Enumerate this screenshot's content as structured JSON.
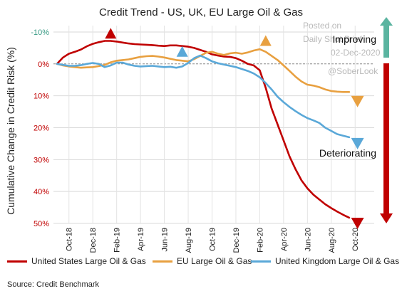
{
  "chart_data": {
    "type": "line",
    "title": "Credit Trend - US, UK, EU Large Oil & Gas",
    "ylabel": "Cumulative Change in Credit Risk (%)",
    "xlabel": "",
    "y_axis_inverted": true,
    "ylim": [
      -12,
      50
    ],
    "y_ticks": [
      -10,
      0,
      10,
      20,
      30,
      40,
      50
    ],
    "y_tick_labels": [
      "-10%",
      "0%",
      "10%",
      "20%",
      "30%",
      "40%",
      "50%"
    ],
    "x_tick_labels": [
      "Oct-18",
      "Dec-18",
      "Feb-19",
      "Apr-19",
      "Jun-19",
      "Aug-19",
      "Oct-19",
      "Dec-19",
      "Feb-20",
      "Apr-20",
      "Jun-20",
      "Aug-20",
      "Oct-20"
    ],
    "x_month_index": [
      0,
      2,
      4,
      6,
      8,
      10,
      12,
      14,
      16,
      18,
      20,
      22,
      24
    ],
    "grid": true,
    "legend_position": "bottom",
    "series": [
      {
        "name": "United States Large Oil & Gas",
        "color": "#c00000",
        "x": [
          -1,
          -0.5,
          0,
          0.5,
          1,
          1.5,
          2,
          2.5,
          3,
          3.5,
          4,
          4.5,
          5,
          5.5,
          6,
          6.5,
          7,
          7.5,
          8,
          8.5,
          9,
          9.5,
          10,
          10.5,
          11,
          11.5,
          12,
          12.5,
          13,
          13.5,
          14,
          14.5,
          15,
          15.5,
          16,
          16.5,
          17,
          17.5,
          18,
          18.5,
          19,
          19.5,
          20,
          20.5,
          21,
          21.5,
          22,
          22.5,
          23,
          23.5
        ],
        "y": [
          0,
          -2,
          -3.2,
          -3.8,
          -4.5,
          -5.5,
          -6.3,
          -6.8,
          -7.2,
          -7.2,
          -7,
          -6.7,
          -6.4,
          -6.2,
          -6.1,
          -6,
          -5.9,
          -5.7,
          -5.6,
          -5.8,
          -5.8,
          -5.6,
          -5.4,
          -5,
          -4.4,
          -3.8,
          -3,
          -2.6,
          -2.3,
          -2.2,
          -1.8,
          -1,
          0,
          0.5,
          2,
          7.5,
          14,
          19,
          24,
          29,
          33,
          36.5,
          39,
          41,
          42.5,
          44,
          45.2,
          46.3,
          47.3,
          48.2
        ]
      },
      {
        "name": "EU Large Oil & Gas",
        "color": "#e8a040",
        "x": [
          -1,
          -0.5,
          0,
          0.5,
          1,
          1.5,
          2,
          2.5,
          3,
          3.5,
          4,
          4.5,
          5,
          5.5,
          6,
          6.5,
          7,
          7.5,
          8,
          8.5,
          9,
          9.5,
          10,
          10.5,
          11,
          11.5,
          12,
          12.5,
          13,
          13.5,
          14,
          14.5,
          15,
          15.5,
          16,
          16.5,
          17,
          17.5,
          18,
          18.5,
          19,
          19.5,
          20,
          20.5,
          21,
          21.5,
          22,
          22.5,
          23,
          23.5
        ],
        "y": [
          0,
          0.5,
          0.8,
          1,
          1.2,
          1.1,
          1,
          0.7,
          0.3,
          -0.5,
          -1,
          -1.2,
          -1.4,
          -1.8,
          -2.2,
          -2.4,
          -2.5,
          -2.3,
          -2,
          -1.6,
          -1.2,
          -1,
          -0.8,
          -1.5,
          -2.5,
          -3.5,
          -3.8,
          -3.2,
          -2.8,
          -3.3,
          -3.5,
          -3.2,
          -3.6,
          -4.2,
          -4.6,
          -3.8,
          -2.5,
          -1.2,
          0.5,
          2.2,
          4,
          5.5,
          6.5,
          6.8,
          7.3,
          8,
          8.5,
          8.7,
          8.8,
          8.8
        ]
      },
      {
        "name": "United Kingdom Large Oil & Gas",
        "color": "#5aa8d8",
        "x": [
          -1,
          -0.5,
          0,
          0.5,
          1,
          1.5,
          2,
          2.5,
          3,
          3.5,
          4,
          4.5,
          5,
          5.5,
          6,
          6.5,
          7,
          7.5,
          8,
          8.5,
          9,
          9.5,
          10,
          10.5,
          11,
          11.5,
          12,
          12.5,
          13,
          13.5,
          14,
          14.5,
          15,
          15.5,
          16,
          16.5,
          17,
          17.5,
          18,
          18.5,
          19,
          19.5,
          20,
          20.5,
          21,
          21.5,
          22,
          22.5,
          23,
          23.5
        ],
        "y": [
          0,
          0.3,
          0.6,
          0.6,
          0.4,
          0,
          -0.3,
          0,
          1,
          0.5,
          -0.4,
          -0.4,
          0.2,
          0.6,
          0.8,
          0.7,
          0.6,
          0.8,
          1,
          0.9,
          1.2,
          0.8,
          -0.3,
          -1.8,
          -2.6,
          -1.8,
          -0.8,
          -0.2,
          0.2,
          0.6,
          1,
          1.6,
          2.2,
          3,
          4.2,
          6,
          8,
          10.3,
          12,
          13.5,
          14.8,
          16,
          17,
          17.7,
          18.5,
          20,
          21,
          22,
          22.5,
          23
        ]
      }
    ],
    "annotations": {
      "improving": "Improving",
      "deteriorating": "Deteriorating",
      "watermark_posted": "Posted on",
      "watermark_site": "Daily Shot Brief",
      "watermark_date": "02-Dec-2020",
      "watermark_handle": "@SoberLook"
    },
    "markers": [
      {
        "series": 0,
        "x": 3.5,
        "y": -9.5,
        "dir": "up"
      },
      {
        "series": 2,
        "x": 9.5,
        "y": -3.8,
        "dir": "up"
      },
      {
        "series": 1,
        "x": 16.5,
        "y": -7.2,
        "dir": "up"
      },
      {
        "series": 1,
        "x": 24.2,
        "y": 11.8,
        "dir": "down"
      },
      {
        "series": 2,
        "x": 24.2,
        "y": 25,
        "dir": "down"
      },
      {
        "series": 0,
        "x": 24.2,
        "y": 50,
        "dir": "down"
      }
    ],
    "colors": {
      "improving_arrow": "#5ab4a0",
      "deteriorating_arrow": "#c00000"
    }
  },
  "source": "Source: Credit Benchmark"
}
